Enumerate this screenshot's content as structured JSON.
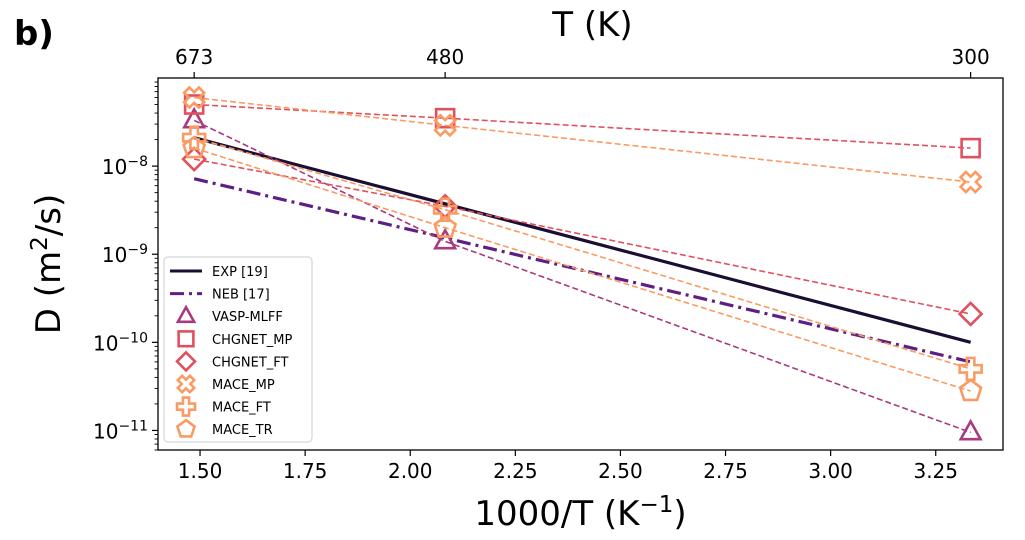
{
  "panel_label": "b)",
  "chart_data": {
    "type": "scatter",
    "x_scale": "linear",
    "y_scale": "log",
    "xlabel": "1000/T (K",
    "xlabel_sup": "−1",
    "xlabel_end": ")",
    "ylabel": "D (m",
    "ylabel_sup": "2",
    "ylabel_end": "/s)",
    "top_xlabel": "T (K)",
    "xlim": [
      1.4,
      3.41
    ],
    "ylim": [
      6e-12,
      1e-07
    ],
    "x_ticks": [
      1.5,
      1.75,
      2.0,
      2.25,
      2.5,
      2.75,
      3.0,
      3.25
    ],
    "x_tick_labels": [
      "1.50",
      "1.75",
      "2.00",
      "2.25",
      "2.50",
      "2.75",
      "3.00",
      "3.25"
    ],
    "y_ticks": [
      1e-11,
      1e-10,
      1e-09,
      1e-08
    ],
    "y_tick_labels": [
      {
        "base": "10",
        "exp": "−11"
      },
      {
        "base": "10",
        "exp": "−10"
      },
      {
        "base": "10",
        "exp": "−9"
      },
      {
        "base": "10",
        "exp": "−8"
      }
    ],
    "top_ticks": [
      {
        "x": 1.486,
        "label": "673"
      },
      {
        "x": 2.083,
        "label": "480"
      },
      {
        "x": 3.333,
        "label": "300"
      }
    ],
    "legend_position": "lower-left",
    "series": [
      {
        "name": "EXP [19]",
        "kind": "line",
        "style": "solid",
        "color": "#1a0f33",
        "points": [
          [
            1.486,
            2.1e-08
          ],
          [
            3.333,
            1e-10
          ]
        ]
      },
      {
        "name": "NEB [17]",
        "kind": "line",
        "style": "dashdot",
        "color": "#5e1f83",
        "points": [
          [
            1.486,
            7.2e-09
          ],
          [
            3.333,
            6e-11
          ]
        ]
      },
      {
        "name": "VASP-MLFF",
        "kind": "markers",
        "marker": "triangle",
        "color": "#a93a7e",
        "points": [
          [
            1.486,
            3.3e-08
          ],
          [
            2.083,
            1.4e-09
          ],
          [
            3.333,
            9.5e-12
          ]
        ]
      },
      {
        "name": "CHGNET_MP",
        "kind": "markers",
        "marker": "square",
        "color": "#e1505e",
        "points": [
          [
            1.486,
            5e-08
          ],
          [
            2.083,
            3.5e-08
          ],
          [
            3.333,
            1.6e-08
          ]
        ]
      },
      {
        "name": "CHGNET_FT",
        "kind": "markers",
        "marker": "diamond",
        "color": "#e1505e",
        "points": [
          [
            1.486,
            1.2e-08
          ],
          [
            2.083,
            3.5e-09
          ],
          [
            3.333,
            2.1e-10
          ]
        ]
      },
      {
        "name": "MACE_MP",
        "kind": "markers",
        "marker": "x",
        "color": "#f99b62",
        "points": [
          [
            1.486,
            6e-08
          ],
          [
            2.083,
            2.9e-08
          ],
          [
            3.333,
            6.6e-09
          ]
        ]
      },
      {
        "name": "MACE_FT",
        "kind": "markers",
        "marker": "plus",
        "color": "#f99b62",
        "points": [
          [
            1.486,
            2.1e-08
          ],
          [
            2.083,
            3.2e-09
          ],
          [
            3.333,
            5e-11
          ]
        ]
      },
      {
        "name": "MACE_TR",
        "kind": "markers",
        "marker": "pentagon",
        "color": "#f99b62",
        "points": [
          [
            1.486,
            1.6e-08
          ],
          [
            2.083,
            2e-09
          ],
          [
            3.333,
            2.8e-11
          ]
        ]
      }
    ]
  }
}
